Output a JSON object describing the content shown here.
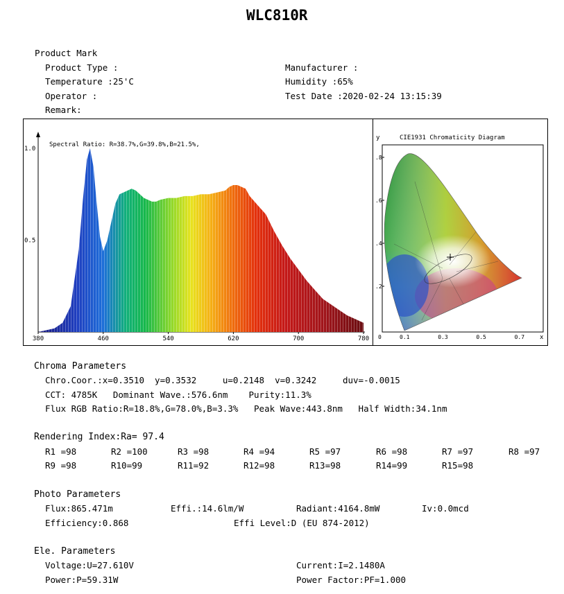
{
  "title": "WLC810R",
  "product": {
    "heading": "Product Mark",
    "type": "Product Type :",
    "temperature": "Temperature :25'C",
    "operator": "Operator :",
    "remark": "Remark:",
    "manufacturer": "Manufacturer :",
    "humidity": "Humidity :65%",
    "test_date": "Test Date :2020-02-24 13:15:39"
  },
  "spectrum": {
    "ratio_text": "Spectral Ratio:  R=38.7%,G=39.8%,B=21.5%,",
    "x_ticks": [
      "380",
      "460",
      "540",
      "620",
      "700",
      "780"
    ],
    "y_ticks": [
      "1.0",
      "0.5"
    ]
  },
  "cie": {
    "title": "CIE1931 Chromaticity Diagram",
    "y_label": "y",
    "x_label": "x",
    "y_ticks": [
      ".8",
      ".6",
      ".4",
      ".2"
    ],
    "x_ticks": [
      "0",
      "0.1",
      "0.3",
      "0.5",
      "0.7"
    ]
  },
  "chart_data": {
    "type": "area",
    "title": "",
    "xlabel": "",
    "ylabel": "",
    "xlim": [
      380,
      780
    ],
    "ylim": [
      0,
      1.05
    ],
    "x": [
      380,
      390,
      400,
      410,
      420,
      430,
      435,
      440,
      443.8,
      448,
      452,
      456,
      460,
      465,
      470,
      475,
      480,
      485,
      490,
      495,
      500,
      505,
      510,
      515,
      520,
      525,
      530,
      540,
      550,
      560,
      570,
      580,
      590,
      600,
      610,
      615,
      620,
      625,
      630,
      635,
      640,
      650,
      660,
      670,
      680,
      690,
      700,
      710,
      720,
      730,
      740,
      750,
      760,
      770,
      780
    ],
    "y": [
      0.0,
      0.01,
      0.02,
      0.05,
      0.14,
      0.45,
      0.72,
      0.94,
      1.0,
      0.9,
      0.7,
      0.52,
      0.44,
      0.5,
      0.6,
      0.7,
      0.75,
      0.76,
      0.77,
      0.78,
      0.77,
      0.75,
      0.73,
      0.72,
      0.71,
      0.71,
      0.72,
      0.73,
      0.73,
      0.74,
      0.74,
      0.75,
      0.75,
      0.76,
      0.77,
      0.79,
      0.8,
      0.8,
      0.79,
      0.78,
      0.74,
      0.69,
      0.64,
      0.55,
      0.47,
      0.4,
      0.34,
      0.28,
      0.23,
      0.18,
      0.15,
      0.12,
      0.09,
      0.07,
      0.05
    ],
    "annotation": "Spectral Ratio:  R=38.7%,G=39.8%,B=21.5%,"
  },
  "chroma": {
    "heading": "Chroma Parameters",
    "line1": "Chro.Coor.:x=0.3510  y=0.3532     u=0.2148  v=0.3242     duv=-0.0015",
    "line2": "CCT: 4785K   Dominant Wave.:576.6nm    Purity:11.3%",
    "line3": "Flux RGB Ratio:R=18.8%,G=78.0%,B=3.3%   Peak Wave:443.8nm   Half Width:34.1nm"
  },
  "rendering": {
    "heading": "Rendering Index:Ra= 97.4",
    "row1": [
      "R1 =98",
      "R2 =100",
      "R3 =98",
      "R4 =94",
      "R5 =97",
      "R6 =98",
      "R7 =97",
      "R8 =97"
    ],
    "row2": [
      "R9 =98",
      "R10=99",
      "R11=92",
      "R12=98",
      "R13=98",
      "R14=99",
      "R15=98"
    ]
  },
  "photo": {
    "heading": "Photo Parameters",
    "flux": "Flux:865.471m",
    "effi": "Effi.:14.6lm/W",
    "radiant": "Radiant:4164.8mW",
    "iv": "Iv:0.0mcd",
    "efficiency": "Efficiency:0.868",
    "effi_level": "Effi Level:D (EU 874-2012)"
  },
  "ele": {
    "heading": "Ele. Parameters",
    "voltage": "Voltage:U=27.610V",
    "current": "Current:I=2.1480A",
    "power": "Power:P=59.31W",
    "pf": "Power Factor:PF=1.000"
  }
}
